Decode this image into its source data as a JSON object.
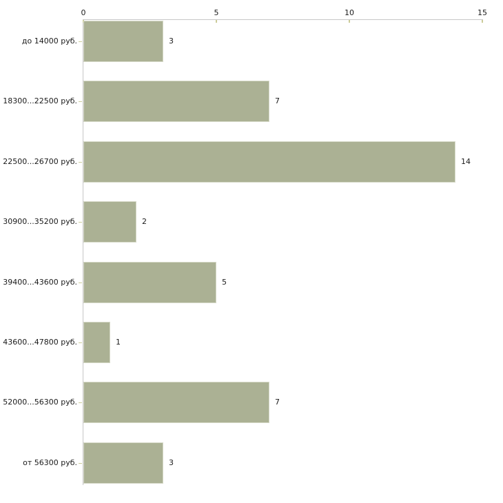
{
  "chart_data": {
    "type": "bar",
    "orientation": "horizontal",
    "title": "",
    "xlabel": "",
    "ylabel": "",
    "categories": [
      "до 14000 руб.",
      "18300...22500 руб.",
      "22500...26700 руб.",
      "30900...35200 руб.",
      "39400...43600 руб.",
      "43600...47800 руб.",
      "52000...56300 руб.",
      "от 56300 руб."
    ],
    "values": [
      3,
      7,
      14,
      2,
      5,
      1,
      7,
      3
    ],
    "value_labels": [
      "3",
      "7",
      "14",
      "2",
      "5",
      "1",
      "7",
      "3"
    ],
    "xlim": [
      0,
      15
    ],
    "x_ticks": [
      "0",
      "5",
      "10",
      "15"
    ],
    "x_tick_values": [
      0,
      5,
      10,
      15
    ],
    "axis_position": "top",
    "grid": false,
    "legend": false,
    "colors": {
      "bar_fill": "#abb194",
      "bar_border": "#d7dac9",
      "axis_line": "#c6c6c6",
      "tick_mark": "#cccc99",
      "text": "#1a1a1a",
      "background": "#ffffff"
    }
  }
}
